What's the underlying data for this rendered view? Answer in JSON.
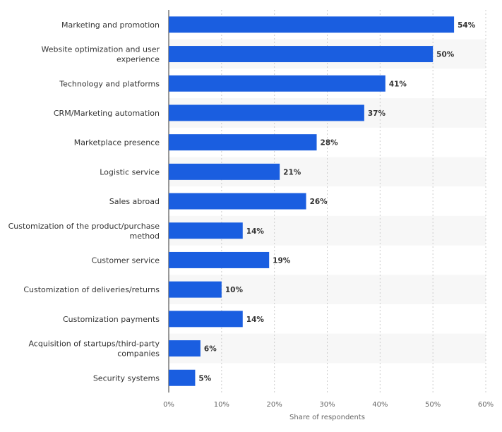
{
  "chart_data": {
    "type": "bar",
    "orientation": "horizontal",
    "categories": [
      "Marketing and promotion",
      "Website optimization and user experience",
      "Technology and platforms",
      "CRM/Marketing automation",
      "Marketplace presence",
      "Logistic service",
      "Sales abroad",
      "Customization of the product/purchase method",
      "Customer service",
      "Customization of deliveries/returns",
      "Customization payments",
      "Acquisition of startups/third-party companies",
      "Security systems"
    ],
    "category_lines": [
      [
        "Marketing and promotion"
      ],
      [
        "Website optimization and user",
        "experience"
      ],
      [
        "Technology and platforms"
      ],
      [
        "CRM/Marketing automation"
      ],
      [
        "Marketplace presence"
      ],
      [
        "Logistic service"
      ],
      [
        "Sales abroad"
      ],
      [
        "Customization of the product/purchase",
        "method"
      ],
      [
        "Customer service"
      ],
      [
        "Customization of deliveries/returns"
      ],
      [
        "Customization payments"
      ],
      [
        "Acquisition of startups/third-party",
        "companies"
      ],
      [
        "Security systems"
      ]
    ],
    "values": [
      54,
      50,
      41,
      37,
      28,
      21,
      26,
      14,
      19,
      10,
      14,
      6,
      5
    ],
    "data_labels": [
      "54%",
      "50%",
      "41%",
      "37%",
      "28%",
      "21%",
      "26%",
      "14%",
      "19%",
      "10%",
      "14%",
      "6%",
      "5%"
    ],
    "xlim": [
      0,
      60
    ],
    "ticks": [
      0,
      10,
      20,
      30,
      40,
      50,
      60
    ],
    "tick_labels": [
      "0%",
      "10%",
      "20%",
      "30%",
      "40%",
      "50%",
      "60%"
    ],
    "xlabel": "Share of respondents",
    "ylabel": "",
    "title": "",
    "grid": "vertical dotted",
    "bar_color": "#1a5ee0",
    "alt_row_color": "#f7f7f7"
  }
}
